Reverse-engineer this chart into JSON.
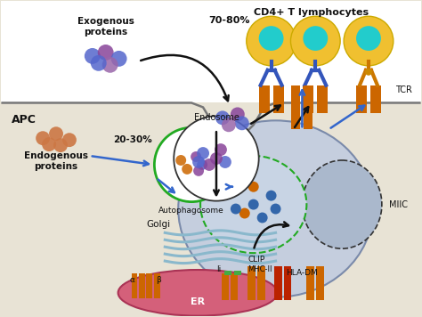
{
  "bg_color": "#e8e3d5",
  "white_top": "#ffffff",
  "cell_bg": "#c5cede",
  "cell_border": "#7a8aaa",
  "er_color": "#d4607a",
  "er_border": "#aa3355",
  "golgi_color": "#8ab8cc",
  "endosome_fill": "#ffffff",
  "endosome_border": "#333333",
  "autophagosome_border": "#22aa22",
  "miic_fill": "#b8c4d8",
  "miic_border": "#333333",
  "orange_bar": "#cc6600",
  "red_bar": "#bb2200",
  "arrow_black": "#111111",
  "arrow_blue": "#3366cc",
  "text_color": "#111111",
  "membrane_line": "#777777",
  "t_cell_outer": "#f0c030",
  "t_cell_inner": "#22cccc",
  "tcr_blue": "#3355bb",
  "tcr_orange": "#cc7700",
  "labels": {
    "apc": "APC",
    "exogenous": "Exogenous\nproteins",
    "pct1": "70-80%",
    "endogenous": "Endogenous\nproteins",
    "pct2": "20-30%",
    "autophagosome": "Autophagosome",
    "golgi": "Golgi",
    "er": "ER",
    "mhc2": "MHC-II",
    "li": "Ii",
    "alpha": "α",
    "beta": "β",
    "endosome": "Endosome",
    "clip": "CLIP",
    "hladm": "HLA-DM",
    "miic": "MIIC",
    "tcr": "TCR",
    "cd4t": "CD4+ T lymphocytes"
  }
}
